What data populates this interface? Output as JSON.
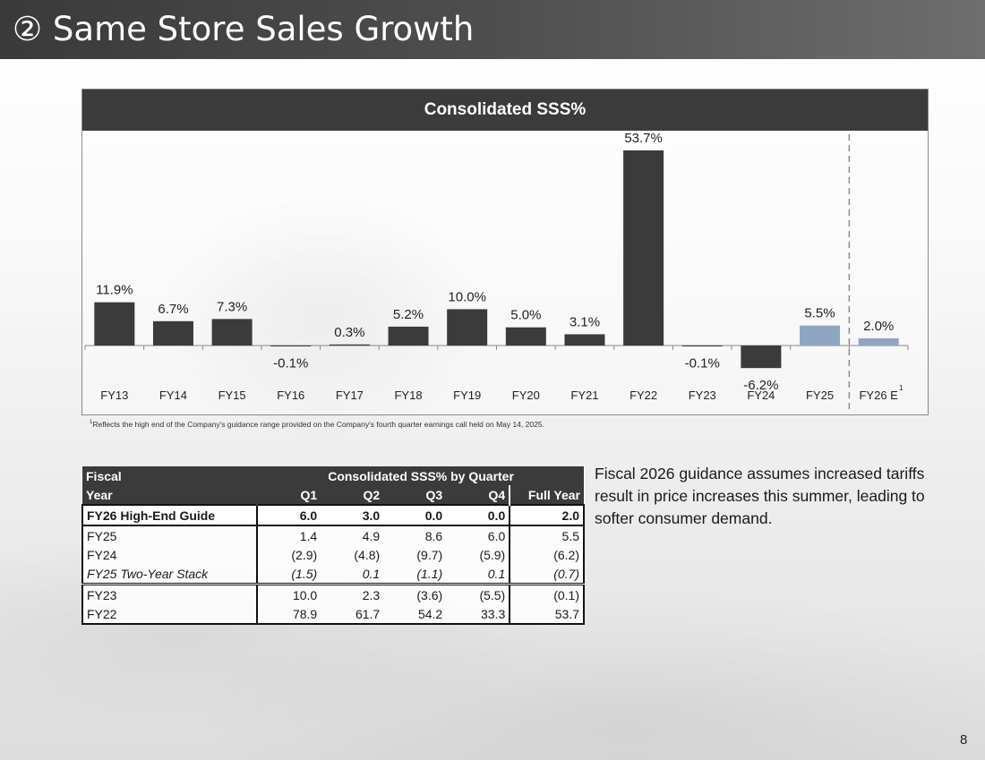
{
  "slide": {
    "title": "② Same Store Sales Growth",
    "page_number": "8"
  },
  "chart_data": {
    "type": "bar",
    "title": "Consolidated SSS%",
    "categories": [
      "FY13",
      "FY14",
      "FY15",
      "FY16",
      "FY17",
      "FY18",
      "FY19",
      "FY20",
      "FY21",
      "FY22",
      "FY23",
      "FY24",
      "FY25",
      "FY26 E"
    ],
    "values": [
      11.9,
      6.7,
      7.3,
      -0.1,
      0.3,
      5.2,
      10.0,
      5.0,
      3.1,
      53.7,
      -0.1,
      -6.2,
      5.5,
      2.0
    ],
    "value_labels": [
      "11.9%",
      "6.7%",
      "7.3%",
      "-0.1%",
      "0.3%",
      "5.2%",
      "10.0%",
      "5.0%",
      "3.1%",
      "53.7%",
      "-0.1%",
      "-6.2%",
      "5.5%",
      "2.0%"
    ],
    "highlight_categories": [
      "FY25",
      "FY26 E"
    ],
    "bar_color": "#3b3b3b",
    "highlight_color": "#8ea6c3",
    "divider_color": "#7c8fa8",
    "divider_position": "between FY25 and FY26 E",
    "last_category_superscript": "1",
    "ylim": [
      -8,
      55
    ],
    "grid": false,
    "legend": "none"
  },
  "footnote": {
    "marker": "1",
    "text": "Reflects the high end of the Company's guidance range provided on the Company's fourth quarter earnings call held on May 14, 2025."
  },
  "quarter_table": {
    "header_row1": {
      "col1": "Fiscal",
      "group": "Consolidated SSS% by Quarter"
    },
    "header_row2": {
      "col1": "Year",
      "q1": "Q1",
      "q2": "Q2",
      "q3": "Q3",
      "q4": "Q4",
      "full": "Full Year"
    },
    "rows": [
      {
        "fy": "FY26 High-End Guide",
        "q1": "6.0",
        "q2": "3.0",
        "q3": "0.0",
        "q4": "0.0",
        "full": "2.0"
      },
      {
        "fy": "FY25",
        "q1": "1.4",
        "q2": "4.9",
        "q3": "8.6",
        "q4": "6.0",
        "full": "5.5"
      },
      {
        "fy": "FY24",
        "q1": "(2.9)",
        "q2": "(4.8)",
        "q3": "(9.7)",
        "q4": "(5.9)",
        "full": "(6.2)"
      },
      {
        "fy": "FY25 Two-Year Stack",
        "q1": "(1.5)",
        "q2": "0.1",
        "q3": "(1.1)",
        "q4": "0.1",
        "full": "(0.7)"
      },
      {
        "fy": "FY23",
        "q1": "10.0",
        "q2": "2.3",
        "q3": "(3.6)",
        "q4": "(5.5)",
        "full": "(0.1)"
      },
      {
        "fy": "FY22",
        "q1": "78.9",
        "q2": "61.7",
        "q3": "54.2",
        "q4": "33.3",
        "full": "53.7"
      }
    ]
  },
  "commentary": "Fiscal 2026 guidance assumes increased tariffs result in price increases this summer, leading to softer consumer demand."
}
